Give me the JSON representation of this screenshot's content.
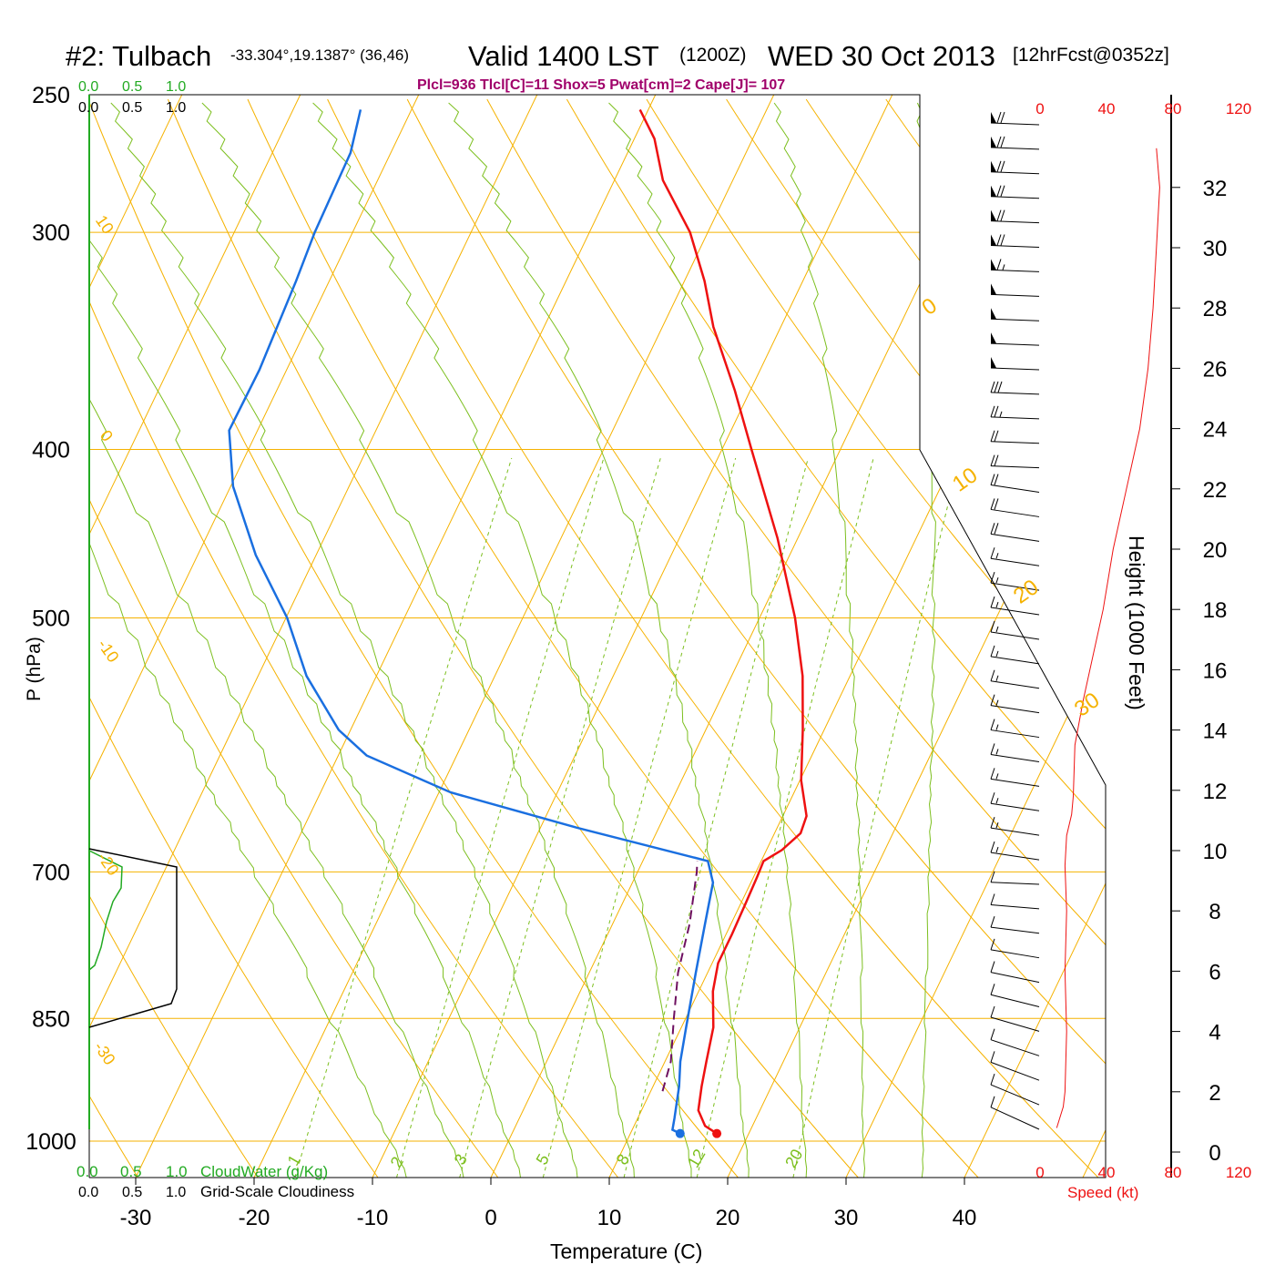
{
  "header": {
    "station": "#2: Tulbach",
    "coords": "-33.304°,19.1387° (36,46)",
    "valid": "Valid 1400 LST",
    "utc": "(1200Z)",
    "date": "WED 30 Oct 2013",
    "forecast": "[12hrFcst@0352z]",
    "indices": "Plcl=936 Tlcl[C]=11 Shox=5 Pwat[cm]=2 Cape[J]= 107"
  },
  "colors": {
    "isobar": "#f5b200",
    "mixing_ratio": "#7cbf1e",
    "temperature": "#ee1111",
    "dewpoint": "#1a6fe0",
    "parcel": "#6e1060",
    "cloud": "#22aa22",
    "indices_text": "#a0006a",
    "speed": "#ee1111"
  },
  "chart_data": {
    "type": "skew-t",
    "xlabel": "Temperature (C)",
    "ylabel": "P (hPa)",
    "right_label": "Height (1000 Feet)",
    "speed_label": "Speed (kt)",
    "x_ticks": [
      "-30",
      "-20",
      "-10",
      "0",
      "10",
      "20",
      "30",
      "40"
    ],
    "pressure_levels": [
      "250",
      "300",
      "400",
      "500",
      "700",
      "850",
      "1000"
    ],
    "height_ticks": [
      "32",
      "30",
      "28",
      "26",
      "24",
      "22",
      "20",
      "18",
      "16",
      "14",
      "12",
      "10",
      "8",
      "6",
      "4",
      "2",
      "0"
    ],
    "speed_ticks": [
      "0",
      "40",
      "80",
      "120"
    ],
    "cloud_scale_green": [
      "0.0",
      "0.5",
      "1.0"
    ],
    "cloud_scale_black": [
      "0.0",
      "0.5",
      "1.0"
    ],
    "cloud_water_label": "CloudWater (g/Kg)",
    "cloudiness_label": "Grid-Scale Cloudiness",
    "dry_adiabat_labels": [
      "10",
      "0",
      "-10",
      "-20",
      "-30"
    ],
    "isotherm_labels": [
      "0",
      "10",
      "20",
      "30"
    ],
    "mixing_ratio_labels": [
      "1",
      "2",
      "3",
      "5",
      "8",
      "12",
      "20"
    ],
    "temperature_profile": [
      {
        "p": 990,
        "t": 17.3
      },
      {
        "p": 980,
        "t": 16.0
      },
      {
        "p": 960,
        "t": 14.8
      },
      {
        "p": 930,
        "t": 14.1
      },
      {
        "p": 900,
        "t": 13.5
      },
      {
        "p": 860,
        "t": 12.7
      },
      {
        "p": 820,
        "t": 11.2
      },
      {
        "p": 790,
        "t": 10.5
      },
      {
        "p": 760,
        "t": 10.5
      },
      {
        "p": 730,
        "t": 10.4
      },
      {
        "p": 705,
        "t": 10.3
      },
      {
        "p": 690,
        "t": 10.2
      },
      {
        "p": 680,
        "t": 11.3
      },
      {
        "p": 665,
        "t": 12.2
      },
      {
        "p": 650,
        "t": 12.0
      },
      {
        "p": 620,
        "t": 10.1
      },
      {
        "p": 580,
        "t": 8.2
      },
      {
        "p": 540,
        "t": 6.0
      },
      {
        "p": 500,
        "t": 3.0
      },
      {
        "p": 450,
        "t": -1.7
      },
      {
        "p": 400,
        "t": -7.5
      },
      {
        "p": 370,
        "t": -11.3
      },
      {
        "p": 340,
        "t": -15.7
      },
      {
        "p": 320,
        "t": -18.3
      },
      {
        "p": 300,
        "t": -21.5
      },
      {
        "p": 280,
        "t": -25.9
      },
      {
        "p": 265,
        "t": -28.3
      },
      {
        "p": 255,
        "t": -30.7
      }
    ],
    "dewpoint_profile": [
      {
        "p": 990,
        "t": 14.2
      },
      {
        "p": 985,
        "t": 13.4
      },
      {
        "p": 970,
        "t": 13.1
      },
      {
        "p": 930,
        "t": 12.2
      },
      {
        "p": 900,
        "t": 11.3
      },
      {
        "p": 860,
        "t": 10.4
      },
      {
        "p": 800,
        "t": 9.0
      },
      {
        "p": 750,
        "t": 7.8
      },
      {
        "p": 710,
        "t": 6.8
      },
      {
        "p": 690,
        "t": 5.5
      },
      {
        "p": 660,
        "t": -7.0
      },
      {
        "p": 630,
        "t": -19.0
      },
      {
        "p": 600,
        "t": -27.6
      },
      {
        "p": 580,
        "t": -31.0
      },
      {
        "p": 540,
        "t": -35.9
      },
      {
        "p": 500,
        "t": -39.9
      },
      {
        "p": 460,
        "t": -45.1
      },
      {
        "p": 420,
        "t": -49.8
      },
      {
        "p": 390,
        "t": -52.4
      },
      {
        "p": 360,
        "t": -52.3
      },
      {
        "p": 320,
        "t": -52.8
      },
      {
        "p": 300,
        "t": -53.2
      },
      {
        "p": 270,
        "t": -53.4
      },
      {
        "p": 255,
        "t": -54.3
      }
    ],
    "parcel_profile": [
      {
        "p": 936,
        "t": 11.0
      },
      {
        "p": 900,
        "t": 10.5
      },
      {
        "p": 850,
        "t": 9.0
      },
      {
        "p": 800,
        "t": 7.5
      },
      {
        "p": 750,
        "t": 6.5
      },
      {
        "p": 700,
        "t": 5.0
      },
      {
        "p": 690,
        "t": 4.6
      }
    ],
    "wind_speed_profile": [
      {
        "h": 0.8,
        "s": 10
      },
      {
        "h": 1.5,
        "s": 14
      },
      {
        "h": 2.0,
        "s": 15
      },
      {
        "h": 4.0,
        "s": 16
      },
      {
        "h": 6.0,
        "s": 15
      },
      {
        "h": 8.0,
        "s": 16
      },
      {
        "h": 9.5,
        "s": 15
      },
      {
        "h": 10.5,
        "s": 16
      },
      {
        "h": 11.2,
        "s": 19
      },
      {
        "h": 11.8,
        "s": 20
      },
      {
        "h": 13.5,
        "s": 21
      },
      {
        "h": 15.0,
        "s": 26
      },
      {
        "h": 18.0,
        "s": 38
      },
      {
        "h": 20.0,
        "s": 44
      },
      {
        "h": 22.0,
        "s": 52
      },
      {
        "h": 24.0,
        "s": 60
      },
      {
        "h": 26.0,
        "s": 65
      },
      {
        "h": 28.0,
        "s": 68
      },
      {
        "h": 30.0,
        "s": 70
      },
      {
        "h": 32.0,
        "s": 72
      },
      {
        "h": 33.3,
        "s": 70
      }
    ],
    "wind_barb_speeds": [
      70,
      70,
      70,
      70,
      70,
      70,
      65,
      50,
      50,
      50,
      50,
      30,
      25,
      20,
      20,
      20,
      20,
      20,
      15,
      15,
      15,
      15,
      15,
      15,
      15,
      15,
      15,
      15,
      15,
      15,
      15,
      10,
      10,
      10,
      10,
      10,
      10,
      10,
      10,
      10,
      10,
      10
    ]
  }
}
